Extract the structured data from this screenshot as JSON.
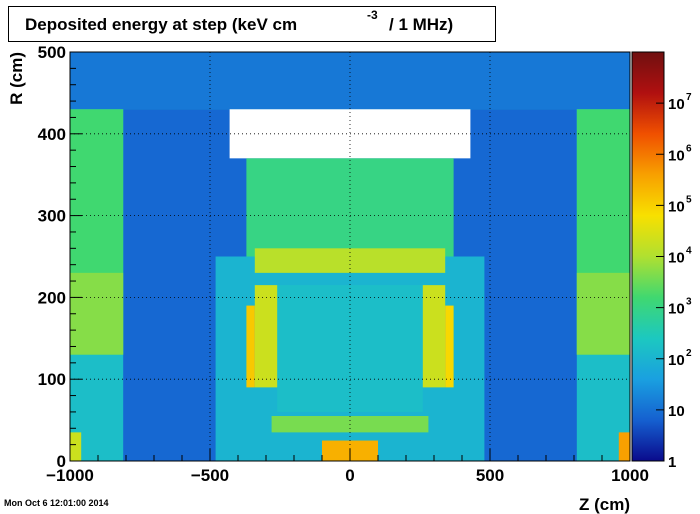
{
  "chart_data": {
    "type": "heatmap",
    "title_main": "Deposited energy at step (keV cm",
    "title_sup": "-3",
    "title_tail": "/ 1 MHz)",
    "xlabel": "Z (cm)",
    "ylabel": "R (cm)",
    "xlim": [
      -1000,
      1000
    ],
    "ylim": [
      0,
      500
    ],
    "x_ticks": [
      -1000,
      -500,
      0,
      500,
      1000
    ],
    "x_tick_labels": [
      "−1000",
      "−500",
      "0",
      "500",
      "1000"
    ],
    "y_ticks": [
      0,
      100,
      200,
      300,
      400,
      500
    ],
    "y_tick_labels": [
      "0",
      "100",
      "200",
      "300",
      "400",
      "500"
    ],
    "colorbar": {
      "scale": "log",
      "range": [
        1,
        100000000
      ],
      "ticks": [
        {
          "value": 1,
          "base": "1",
          "exp": ""
        },
        {
          "value": 10,
          "base": "10",
          "exp": ""
        },
        {
          "value": 100,
          "base": "10",
          "exp": "2"
        },
        {
          "value": 1000,
          "base": "10",
          "exp": "3"
        },
        {
          "value": 10000,
          "base": "10",
          "exp": "4"
        },
        {
          "value": 100000,
          "base": "10",
          "exp": "5"
        },
        {
          "value": 1000000,
          "base": "10",
          "exp": "6"
        },
        {
          "value": 10000000,
          "base": "10",
          "exp": "7"
        }
      ],
      "colors": [
        "#0a0a8c",
        "#1560d0",
        "#1aa0e0",
        "#1cc8c0",
        "#40d870",
        "#b0e030",
        "#f8e000",
        "#f8a000",
        "#f05000",
        "#b01010",
        "#701010"
      ]
    },
    "grid": true,
    "regions": [
      {
        "z": [
          -1000,
          1000
        ],
        "r": [
          0,
          500
        ],
        "level": 2.2
      },
      {
        "z": [
          -1000,
          1000
        ],
        "r": [
          430,
          500
        ],
        "level": 1.1
      },
      {
        "z": [
          -810,
          810
        ],
        "r": [
          0,
          430
        ],
        "level": 0.9
      },
      {
        "z": [
          -1000,
          -810
        ],
        "r": [
          130,
          430
        ],
        "level": 3.2
      },
      {
        "z": [
          810,
          1000
        ],
        "r": [
          130,
          430
        ],
        "level": 3.2
      },
      {
        "z": [
          -1000,
          -810
        ],
        "r": [
          130,
          230
        ],
        "level": 3.7
      },
      {
        "z": [
          810,
          1000
        ],
        "r": [
          130,
          230
        ],
        "level": 3.7
      },
      {
        "z": [
          -480,
          480
        ],
        "r": [
          0,
          250
        ],
        "level": 2.0
      },
      {
        "z": [
          -430,
          430
        ],
        "r": [
          370,
          430
        ],
        "level": 0.0
      },
      {
        "z": [
          -370,
          370
        ],
        "r": [
          250,
          370
        ],
        "level": 3.0
      },
      {
        "z": [
          -340,
          340
        ],
        "r": [
          230,
          260
        ],
        "level": 4.1
      },
      {
        "z": [
          -260,
          260
        ],
        "r": [
          60,
          215
        ],
        "level": 2.2
      },
      {
        "z": [
          -340,
          -260
        ],
        "r": [
          90,
          215
        ],
        "level": 4.3
      },
      {
        "z": [
          260,
          340
        ],
        "r": [
          90,
          215
        ],
        "level": 4.3
      },
      {
        "z": [
          -370,
          -340
        ],
        "r": [
          90,
          190
        ],
        "level": 5.1
      },
      {
        "z": [
          340,
          370
        ],
        "r": [
          90,
          190
        ],
        "level": 4.9
      },
      {
        "z": [
          -280,
          280
        ],
        "r": [
          35,
          55
        ],
        "level": 3.6
      },
      {
        "z": [
          -100,
          100
        ],
        "r": [
          0,
          25
        ],
        "level": 5.4
      },
      {
        "z": [
          -1000,
          -960
        ],
        "r": [
          0,
          35
        ],
        "level": 4.3
      },
      {
        "z": [
          960,
          1000
        ],
        "r": [
          0,
          35
        ],
        "level": 5.6
      }
    ]
  },
  "timestamp": "Mon Oct  6 12:01:00 2014"
}
